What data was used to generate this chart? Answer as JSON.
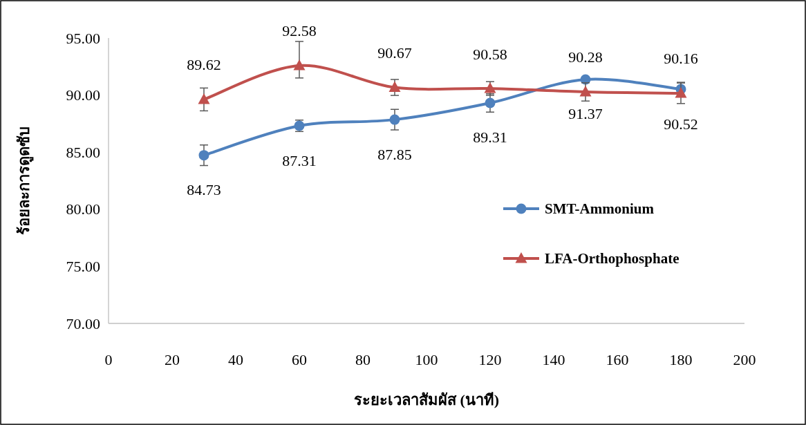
{
  "chart_data": {
    "type": "line",
    "xlabel": "ระยะเวลาสัมผัส (นาที)",
    "ylabel": "ร้อยละการดูดซับ",
    "x": [
      30,
      60,
      90,
      120,
      150,
      180
    ],
    "series": [
      {
        "name": "SMT-Ammonium",
        "color": "#4f81bd",
        "marker": "circle",
        "values": [
          84.73,
          87.31,
          87.85,
          89.31,
          91.37,
          90.52
        ],
        "errors": [
          0.9,
          0.5,
          0.9,
          0.8,
          null,
          0.6
        ]
      },
      {
        "name": "LFA-Orthophosphate",
        "color": "#c0504d",
        "marker": "triangle",
        "values": [
          89.62,
          92.58,
          90.67,
          90.58,
          90.28,
          90.16
        ],
        "errors": [
          1.0,
          [
            91.5,
            94.7
          ],
          0.7,
          0.6,
          0.8,
          0.9
        ]
      }
    ],
    "xlim": [
      0,
      200
    ],
    "xticks": [
      0,
      20,
      40,
      60,
      80,
      100,
      120,
      140,
      160,
      180,
      200
    ],
    "ylim": [
      70,
      95
    ],
    "yticks": [
      {
        "value": 70,
        "label": "70.00"
      },
      {
        "value": 75,
        "label": "75.00"
      },
      {
        "value": 80,
        "label": "80.00"
      },
      {
        "value": 85,
        "label": "85.00"
      },
      {
        "value": 90,
        "label": "90.00"
      },
      {
        "value": 95,
        "label": "95.00"
      }
    ],
    "data_labels": true,
    "grid": false,
    "legend": "right",
    "line_style": "solid"
  }
}
